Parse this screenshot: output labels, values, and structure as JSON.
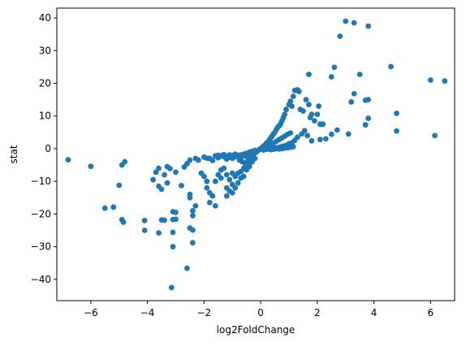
{
  "chart_data": {
    "type": "scatter",
    "title": "",
    "xlabel": "log2FoldChange",
    "ylabel": "stat",
    "xlim": [
      -7.2,
      6.85
    ],
    "ylim": [
      -46.5,
      43.0
    ],
    "xticks": [
      -6,
      -4,
      -2,
      0,
      2,
      4,
      6
    ],
    "yticks": [
      -40,
      -30,
      -20,
      -10,
      0,
      10,
      20,
      30,
      40
    ],
    "grid": false,
    "legend": "none",
    "marker_color": "#1f77b4",
    "points": [
      [
        -6.8,
        -3.4
      ],
      [
        -6.0,
        -5.4
      ],
      [
        -5.5,
        -18.2
      ],
      [
        -5.2,
        -17.9
      ],
      [
        -5.0,
        -11.2
      ],
      [
        -4.9,
        -5.0
      ],
      [
        -4.8,
        -4.0
      ],
      [
        -4.9,
        -21.7
      ],
      [
        -4.85,
        -22.5
      ],
      [
        -4.1,
        -22.0
      ],
      [
        -4.1,
        -25.0
      ],
      [
        -3.8,
        -9.5
      ],
      [
        -3.7,
        -7.2
      ],
      [
        -3.6,
        -6.0
      ],
      [
        -3.5,
        -21.8
      ],
      [
        -3.6,
        -25.8
      ],
      [
        -3.4,
        -21.9
      ],
      [
        -3.6,
        -11.5
      ],
      [
        -3.5,
        -12.4
      ],
      [
        -3.4,
        -8.0
      ],
      [
        -3.3,
        -10.5
      ],
      [
        -3.2,
        -6.1
      ],
      [
        -3.1,
        -19.3
      ],
      [
        -3.0,
        -19.5
      ],
      [
        -3.1,
        -21.7
      ],
      [
        -3.0,
        -21.6
      ],
      [
        -3.1,
        -25.6
      ],
      [
        -3.1,
        -30.0
      ],
      [
        -3.15,
        -42.5
      ],
      [
        -3.3,
        -5.5
      ],
      [
        -3.0,
        -7.2
      ],
      [
        -2.8,
        -11.3
      ],
      [
        -2.7,
        -5.6
      ],
      [
        -2.6,
        -4.6
      ],
      [
        -2.5,
        -14.0
      ],
      [
        -2.5,
        -15.0
      ],
      [
        -2.4,
        -19.0
      ],
      [
        -2.3,
        -17.5
      ],
      [
        -2.4,
        -20.5
      ],
      [
        -2.5,
        -24.3
      ],
      [
        -2.4,
        -24.9
      ],
      [
        -2.4,
        -28.8
      ],
      [
        -2.6,
        -36.6
      ],
      [
        -2.5,
        -3.5
      ],
      [
        -2.3,
        -3.0
      ],
      [
        -2.2,
        -3.5
      ],
      [
        -2.1,
        -7.5
      ],
      [
        -2.0,
        -8.5
      ],
      [
        -1.9,
        -10.0
      ],
      [
        -1.8,
        -13.5
      ],
      [
        -1.7,
        -14.5
      ],
      [
        -1.8,
        -16.5
      ],
      [
        -1.6,
        -17.5
      ],
      [
        -1.9,
        -12.0
      ],
      [
        -1.6,
        -10.0
      ],
      [
        -1.5,
        -8.0
      ],
      [
        -1.4,
        -6.5
      ],
      [
        -1.3,
        -6.0
      ],
      [
        -1.2,
        -12.0
      ],
      [
        -1.1,
        -13.0
      ],
      [
        -1.2,
        -14.5
      ],
      [
        -1.0,
        -13.5
      ],
      [
        -0.9,
        -12.0
      ],
      [
        -0.8,
        -10.5
      ],
      [
        -1.0,
        -11.0
      ],
      [
        -1.4,
        -9.0
      ],
      [
        -1.2,
        -8.0
      ],
      [
        -1.0,
        -7.5
      ],
      [
        -0.9,
        -8.5
      ],
      [
        -0.7,
        -7.0
      ],
      [
        -0.6,
        -8.5
      ],
      [
        -0.5,
        -6.5
      ],
      [
        -0.4,
        -5.5
      ],
      [
        -0.3,
        -4.0
      ],
      [
        -0.2,
        -3.0
      ],
      [
        -1.6,
        -2.2
      ],
      [
        -1.5,
        -2.8
      ],
      [
        -1.3,
        -2.5
      ],
      [
        -1.2,
        -3.2
      ],
      [
        -1.1,
        -2.6
      ],
      [
        -1.0,
        -3.0
      ],
      [
        -0.9,
        -2.5
      ],
      [
        -0.8,
        -2.0
      ],
      [
        -0.7,
        -2.6
      ],
      [
        -0.6,
        -2.2
      ],
      [
        -0.5,
        -2.4
      ],
      [
        -0.4,
        -1.8
      ],
      [
        -0.3,
        -1.5
      ],
      [
        -0.2,
        -1.2
      ],
      [
        -0.1,
        -0.6
      ],
      [
        -1.8,
        -3.0
      ],
      [
        -1.7,
        -3.6
      ],
      [
        -2.0,
        -2.6
      ],
      [
        -1.9,
        -2.9
      ],
      [
        -0.75,
        -3.5
      ],
      [
        -0.65,
        -4.0
      ],
      [
        -0.55,
        -4.5
      ],
      [
        -0.45,
        -3.8
      ],
      [
        -0.35,
        -3.0
      ],
      [
        -0.25,
        -2.0
      ],
      [
        -0.15,
        -1.0
      ],
      [
        -0.05,
        -0.3
      ],
      [
        0.0,
        0.0
      ],
      [
        0.05,
        0.4
      ],
      [
        0.1,
        0.8
      ],
      [
        0.15,
        1.1
      ],
      [
        0.2,
        1.6
      ],
      [
        0.25,
        2.0
      ],
      [
        0.3,
        2.6
      ],
      [
        0.35,
        3.2
      ],
      [
        0.4,
        3.8
      ],
      [
        0.45,
        4.5
      ],
      [
        0.5,
        5.0
      ],
      [
        0.55,
        5.8
      ],
      [
        0.6,
        6.5
      ],
      [
        0.65,
        7.0
      ],
      [
        0.7,
        7.5
      ],
      [
        0.75,
        8.5
      ],
      [
        0.8,
        9.5
      ],
      [
        0.85,
        10.5
      ],
      [
        0.9,
        12.0
      ],
      [
        1.0,
        13.5
      ],
      [
        1.05,
        14.5
      ],
      [
        1.1,
        13.0
      ],
      [
        1.15,
        16.0
      ],
      [
        1.2,
        17.8
      ],
      [
        1.3,
        18.0
      ],
      [
        1.35,
        17.5
      ],
      [
        1.4,
        12.0
      ],
      [
        1.5,
        11.5
      ],
      [
        1.6,
        15.0
      ],
      [
        1.7,
        13.5
      ],
      [
        1.75,
        9.5
      ],
      [
        1.8,
        10.5
      ],
      [
        1.9,
        8.5
      ],
      [
        2.0,
        10.5
      ],
      [
        2.05,
        13.0
      ],
      [
        2.1,
        7.5
      ],
      [
        2.2,
        7.5
      ],
      [
        1.65,
        4.0
      ],
      [
        1.55,
        5.5
      ],
      [
        1.45,
        4.5
      ],
      [
        1.3,
        3.5
      ],
      [
        1.2,
        2.5
      ],
      [
        1.1,
        1.8
      ],
      [
        1.0,
        1.5
      ],
      [
        0.9,
        1.0
      ],
      [
        0.8,
        0.8
      ],
      [
        0.7,
        0.5
      ],
      [
        0.6,
        0.3
      ],
      [
        0.5,
        0.2
      ],
      [
        0.4,
        0.1
      ],
      [
        0.3,
        0.0
      ],
      [
        0.2,
        -0.2
      ],
      [
        0.1,
        -0.4
      ],
      [
        1.7,
        22.7
      ],
      [
        2.5,
        22.0
      ],
      [
        2.6,
        24.9
      ],
      [
        2.8,
        34.4
      ],
      [
        3.0,
        39.0
      ],
      [
        3.3,
        38.5
      ],
      [
        3.8,
        37.5
      ],
      [
        3.5,
        22.7
      ],
      [
        3.3,
        16.8
      ],
      [
        3.2,
        14.3
      ],
      [
        3.7,
        14.8
      ],
      [
        3.8,
        15.0
      ],
      [
        3.8,
        9.3
      ],
      [
        3.7,
        7.3
      ],
      [
        3.1,
        4.5
      ],
      [
        2.7,
        5.7
      ],
      [
        2.5,
        4.4
      ],
      [
        2.3,
        3.0
      ],
      [
        2.1,
        2.8
      ],
      [
        1.8,
        2.4
      ],
      [
        4.6,
        25.1
      ],
      [
        4.8,
        10.8
      ],
      [
        4.8,
        5.4
      ],
      [
        6.0,
        21.0
      ],
      [
        6.5,
        20.7
      ],
      [
        6.15,
        4.0
      ],
      [
        0.35,
        -0.3
      ],
      [
        0.45,
        -0.2
      ],
      [
        0.55,
        0.0
      ],
      [
        0.65,
        -0.1
      ],
      [
        0.75,
        0.0
      ],
      [
        0.85,
        0.2
      ],
      [
        0.95,
        0.3
      ],
      [
        1.05,
        0.4
      ],
      [
        1.15,
        0.6
      ],
      [
        0.25,
        0.6
      ],
      [
        0.35,
        1.2
      ],
      [
        0.45,
        1.7
      ],
      [
        0.55,
        2.2
      ],
      [
        0.65,
        2.8
      ],
      [
        0.75,
        3.3
      ],
      [
        0.85,
        3.8
      ],
      [
        0.95,
        4.4
      ],
      [
        1.05,
        4.8
      ],
      [
        -0.2,
        -0.5
      ],
      [
        -0.3,
        -0.8
      ],
      [
        -0.4,
        -1.1
      ],
      [
        -0.5,
        -1.4
      ],
      [
        -0.6,
        -1.7
      ],
      [
        -0.7,
        -1.9
      ],
      [
        -0.8,
        -2.3
      ],
      [
        -0.9,
        -1.7
      ],
      [
        -1.0,
        -2.1
      ],
      [
        -1.1,
        -1.9
      ],
      [
        -1.2,
        -2.4
      ],
      [
        -1.3,
        -1.8
      ],
      [
        -1.4,
        -2.2
      ],
      [
        -1.5,
        -2.0
      ],
      [
        -0.6,
        -6.0
      ],
      [
        -0.5,
        -5.0
      ],
      [
        -0.4,
        -4.5
      ],
      [
        -0.7,
        -9.0
      ],
      [
        -0.8,
        -7.5
      ],
      [
        -1.1,
        -9.5
      ]
    ]
  }
}
